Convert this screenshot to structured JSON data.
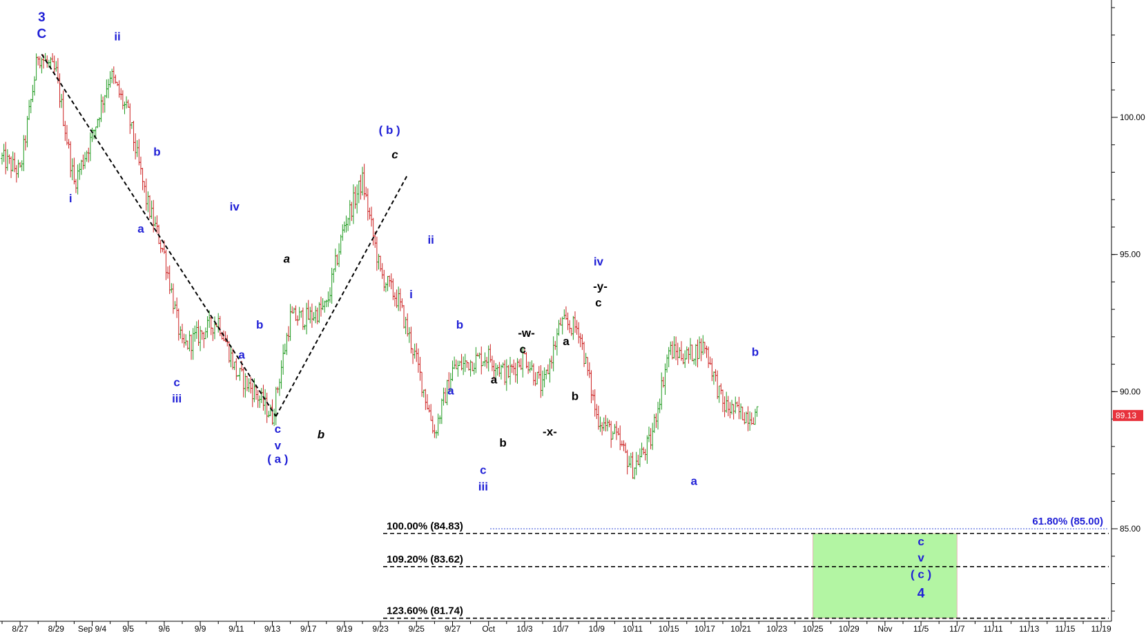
{
  "chart_data": {
    "type": "line",
    "title": "",
    "xlabel": "",
    "ylabel": "",
    "ylim": [
      81.5,
      104.0
    ],
    "y_ticks": [
      "100.00",
      "95.00",
      "90.00",
      "85.00"
    ],
    "y_tick_values": [
      100,
      95,
      90,
      85
    ],
    "x_tick_labels": [
      "8/27",
      "8/29",
      "Sep 9/4",
      "9/5",
      "9/6",
      "9/9",
      "9/11",
      "9/13",
      "9/17",
      "9/19",
      "9/23",
      "9/25",
      "9/27",
      "Oct",
      "10/3",
      "10/7",
      "10/9",
      "10/11",
      "10/15",
      "10/17",
      "10/21",
      "10/23",
      "10/25",
      "10/29",
      "Nov",
      "11/5",
      "11/7",
      "11/11",
      "11/13",
      "11/15",
      "11/19"
    ],
    "x_tick_index": [
      1,
      3,
      5,
      7,
      9,
      11,
      13,
      15,
      17,
      19,
      21,
      23,
      25,
      27,
      29,
      31,
      33,
      35,
      37,
      39,
      41,
      43,
      45,
      47,
      49,
      51,
      53,
      55,
      57,
      59,
      61
    ],
    "last_price": {
      "label": "89.13",
      "value": 89.13,
      "color": "#e8323c"
    },
    "series": [
      {
        "x": [
          0,
          1,
          2,
          3,
          4,
          5,
          6,
          7,
          8,
          9,
          10,
          11,
          12,
          13,
          14,
          15,
          16,
          17,
          18,
          19,
          20,
          21,
          22,
          23,
          24,
          25,
          26,
          27,
          28,
          29,
          30,
          31,
          32,
          33,
          34,
          35,
          36,
          37,
          38,
          39,
          40,
          41,
          42
        ],
        "values": [
          98.5,
          98.0,
          102.3,
          101.6,
          97.6,
          99.3,
          101.6,
          100.1,
          97.0,
          95.0,
          91.6,
          92.1,
          92.6,
          90.7,
          90.0,
          89.1,
          92.7,
          92.7,
          93.1,
          96.1,
          97.7,
          94.3,
          93.3,
          91.1,
          88.5,
          90.8,
          91.1,
          91.3,
          90.6,
          91.3,
          90.1,
          92.5,
          92.3,
          89.1,
          88.4,
          87.2,
          88.2,
          91.5,
          91.3,
          91.7,
          89.5,
          89.2,
          89.13
        ]
      }
    ],
    "colors": {
      "up": "#1e9a1e",
      "down": "#cc1f1f",
      "wave_blue": "#1f1fd6",
      "wave_black": "#000000",
      "target_zone": "#b3f5a3"
    },
    "fib_levels": [
      {
        "label": "100.00% (84.83)",
        "value": 84.83
      },
      {
        "label": "109.20% (83.62)",
        "value": 83.62
      },
      {
        "label": "123.60% (81.74)",
        "value": 81.74
      },
      {
        "label": "61.80% (85.00)",
        "value": 85.0
      }
    ],
    "target_zone": {
      "x": [
        45,
        53
      ],
      "y": [
        81.74,
        84.83
      ]
    },
    "channel_lines": [
      {
        "points": [
          [
            2.2,
            102.3
          ],
          [
            15.2,
            89.1
          ]
        ]
      },
      {
        "points": [
          [
            15.2,
            89.1
          ],
          [
            22.5,
            97.9
          ]
        ]
      }
    ],
    "wave_labels": [
      {
        "text": "3",
        "x": 2.2,
        "y": 103.5,
        "color": "blue"
      },
      {
        "text": "C",
        "x": 2.2,
        "y": 102.9,
        "color": "blue"
      },
      {
        "text": "ii",
        "x": 6.4,
        "y": 102.8,
        "color": "blue"
      },
      {
        "text": "i",
        "x": 3.8,
        "y": 96.9,
        "color": "blue"
      },
      {
        "text": "b",
        "x": 8.6,
        "y": 98.6,
        "color": "blue"
      },
      {
        "text": "a",
        "x": 7.7,
        "y": 95.8,
        "color": "blue"
      },
      {
        "text": "c",
        "x": 9.7,
        "y": 90.2,
        "color": "blue"
      },
      {
        "text": "iii",
        "x": 9.7,
        "y": 89.6,
        "color": "blue"
      },
      {
        "text": "iv",
        "x": 12.9,
        "y": 96.6,
        "color": "blue"
      },
      {
        "text": "b",
        "x": 14.3,
        "y": 92.3,
        "color": "blue"
      },
      {
        "text": "a",
        "x": 13.3,
        "y": 91.2,
        "color": "blue"
      },
      {
        "text": "c",
        "x": 15.3,
        "y": 88.5,
        "color": "blue"
      },
      {
        "text": "v",
        "x": 15.3,
        "y": 87.9,
        "color": "blue"
      },
      {
        "text": "( a )",
        "x": 15.3,
        "y": 87.4,
        "color": "blue"
      },
      {
        "text": "a",
        "x": 15.8,
        "y": 94.7,
        "color": "black",
        "italic": true
      },
      {
        "text": "b",
        "x": 17.7,
        "y": 88.3,
        "color": "black",
        "italic": true
      },
      {
        "text": "( b )",
        "x": 21.5,
        "y": 99.4,
        "color": "blue"
      },
      {
        "text": "c",
        "x": 21.8,
        "y": 98.5,
        "color": "black",
        "italic": true
      },
      {
        "text": "ii",
        "x": 23.8,
        "y": 95.4,
        "color": "blue"
      },
      {
        "text": "i",
        "x": 22.7,
        "y": 93.4,
        "color": "blue"
      },
      {
        "text": "b",
        "x": 25.4,
        "y": 92.3,
        "color": "blue"
      },
      {
        "text": "a",
        "x": 24.9,
        "y": 89.9,
        "color": "blue"
      },
      {
        "text": "c",
        "x": 26.7,
        "y": 87.0,
        "color": "blue"
      },
      {
        "text": "iii",
        "x": 26.7,
        "y": 86.4,
        "color": "blue"
      },
      {
        "text": "a",
        "x": 27.3,
        "y": 90.3,
        "color": "black"
      },
      {
        "text": "b",
        "x": 27.8,
        "y": 88.0,
        "color": "black"
      },
      {
        "text": "-w-",
        "x": 29.1,
        "y": 92.0,
        "color": "black"
      },
      {
        "text": "c",
        "x": 28.9,
        "y": 91.4,
        "color": "black"
      },
      {
        "text": "-x-",
        "x": 30.4,
        "y": 88.4,
        "color": "black"
      },
      {
        "text": "a",
        "x": 31.3,
        "y": 91.7,
        "color": "black"
      },
      {
        "text": "b",
        "x": 31.8,
        "y": 89.7,
        "color": "black"
      },
      {
        "text": "iv",
        "x": 33.1,
        "y": 94.6,
        "color": "blue"
      },
      {
        "text": "-y-",
        "x": 33.2,
        "y": 93.7,
        "color": "black"
      },
      {
        "text": "c",
        "x": 33.1,
        "y": 93.1,
        "color": "black"
      },
      {
        "text": "b",
        "x": 41.8,
        "y": 91.3,
        "color": "blue"
      },
      {
        "text": "a",
        "x": 38.4,
        "y": 86.6,
        "color": "blue"
      },
      {
        "text": "c",
        "x": 51.0,
        "y": 84.4,
        "color": "blue"
      },
      {
        "text": "v",
        "x": 51.0,
        "y": 83.8,
        "color": "blue"
      },
      {
        "text": "( c )",
        "x": 51.0,
        "y": 83.2,
        "color": "blue"
      },
      {
        "text": "4",
        "x": 51.0,
        "y": 82.5,
        "color": "blue"
      }
    ]
  }
}
